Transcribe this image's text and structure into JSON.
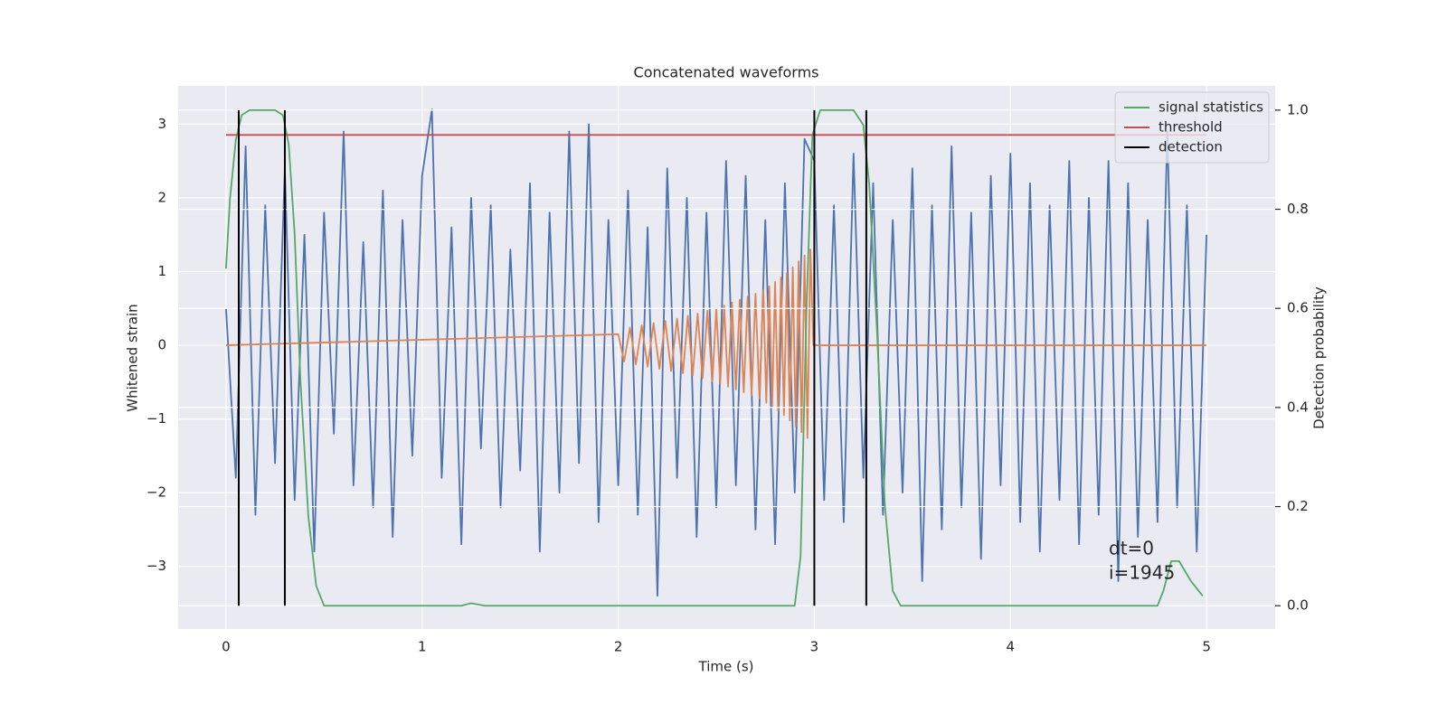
{
  "chart_data": {
    "type": "line",
    "title": "Concatenated waveforms",
    "x_label": "Time (s)",
    "y_label": "Whitened strain",
    "y2_label": "Detection probability",
    "xlim": [
      -0.244,
      5.35
    ],
    "ylim": [
      -3.85,
      3.52
    ],
    "y2lim": [
      -0.047,
      1.049
    ],
    "xticks": [
      0,
      1,
      2,
      3,
      4,
      5
    ],
    "yticks": [
      {
        "value": -3,
        "label": "−3"
      },
      {
        "value": -2,
        "label": "−2"
      },
      {
        "value": -1,
        "label": "−1"
      },
      0,
      1,
      2,
      3
    ],
    "y2ticks": [
      {
        "value": 0,
        "label": "0.0"
      },
      0.2,
      0.4,
      0.6,
      0.8,
      {
        "value": 1,
        "label": "1.0"
      }
    ],
    "grid": true,
    "legend": "upper right",
    "background": "#eaeaf2",
    "annotations": [
      "dt=0",
      "i=1945"
    ],
    "series": [
      {
        "color": "#4c72b0",
        "x": [
          0,
          0.05,
          0.1,
          0.15,
          0.2,
          0.25,
          0.3,
          0.35,
          0.4,
          0.45,
          0.5,
          0.55,
          0.6,
          0.65,
          0.7,
          0.75,
          0.8,
          0.85,
          0.9,
          0.95,
          1,
          1.05,
          1.1,
          1.15,
          1.2,
          1.25,
          1.3,
          1.35,
          1.4,
          1.45,
          1.5,
          1.55,
          1.6,
          1.65,
          1.7,
          1.75,
          1.8,
          1.85,
          1.9,
          1.95,
          2,
          2.05,
          2.1,
          2.15,
          2.2,
          2.25,
          2.3,
          2.35,
          2.4,
          2.45,
          2.5,
          2.55,
          2.6,
          2.65,
          2.7,
          2.75,
          2.8,
          2.85,
          2.9,
          2.95,
          3,
          3.05,
          3.1,
          3.15,
          3.2,
          3.25,
          3.3,
          3.35,
          3.4,
          3.45,
          3.5,
          3.55,
          3.6,
          3.65,
          3.7,
          3.75,
          3.8,
          3.85,
          3.9,
          3.95,
          4,
          4.05,
          4.1,
          4.15,
          4.2,
          4.25,
          4.3,
          4.35,
          4.4,
          4.45,
          4.5,
          4.55,
          4.6,
          4.65,
          4.7,
          4.75,
          4.8,
          4.85,
          4.9,
          4.95,
          5
        ],
        "values": [
          0.5,
          -1.8,
          2.7,
          -2.3,
          1.9,
          -1.6,
          2.4,
          -2.1,
          1.5,
          -2.8,
          1.8,
          -1.2,
          2.9,
          -1.9,
          1.4,
          -2.2,
          2.1,
          -2.6,
          1.7,
          -1.5,
          2.3,
          3.2,
          -1.8,
          1.6,
          -2.7,
          2.0,
          -1.4,
          1.9,
          -2.2,
          1.3,
          -1.7,
          2.2,
          -2.8,
          1.8,
          -2.0,
          2.9,
          -1.6,
          3.0,
          -2.4,
          1.7,
          -1.9,
          2.1,
          -2.3,
          1.6,
          -3.4,
          2.4,
          -1.8,
          2.0,
          -2.6,
          1.8,
          -2.2,
          2.5,
          -1.9,
          2.3,
          -2.5,
          1.7,
          -2.7,
          2.2,
          -2.0,
          2.8,
          2.5,
          -2.1,
          1.9,
          -2.4,
          2.6,
          -1.8,
          2.2,
          -2.3,
          1.7,
          -2.0,
          2.4,
          -3.2,
          1.9,
          -2.5,
          2.7,
          -2.2,
          1.8,
          -2.9,
          2.3,
          -1.9,
          2.6,
          -2.4,
          2.2,
          -2.8,
          1.9,
          -2.1,
          2.5,
          -2.7,
          2.0,
          -2.3,
          2.5,
          -3.2,
          2.2,
          -2.6,
          1.7,
          -2.4,
          2.9,
          -2.2,
          1.9,
          -2.8,
          1.5
        ]
      },
      {
        "color": "#dd8452",
        "x": [
          0,
          2.0,
          2.03,
          2.06,
          2.09,
          2.12,
          2.15,
          2.18,
          2.21,
          2.24,
          2.27,
          2.3,
          2.33,
          2.355,
          2.38,
          2.405,
          2.43,
          2.455,
          2.48,
          2.5,
          2.52,
          2.54,
          2.56,
          2.58,
          2.6,
          2.62,
          2.64,
          2.66,
          2.68,
          2.7,
          2.72,
          2.74,
          2.755,
          2.77,
          2.785,
          2.8,
          2.815,
          2.83,
          2.845,
          2.86,
          2.875,
          2.89,
          2.905,
          2.92,
          2.935,
          2.95,
          2.965,
          2.98,
          2.995,
          5
        ],
        "values": [
          0,
          0.15,
          -0.22,
          0.24,
          -0.26,
          0.27,
          -0.29,
          0.3,
          -0.32,
          0.33,
          -0.35,
          0.36,
          -0.38,
          0.4,
          -0.41,
          0.43,
          -0.45,
          0.47,
          -0.49,
          0.5,
          -0.52,
          0.54,
          -0.56,
          0.58,
          -0.6,
          0.62,
          -0.64,
          0.66,
          -0.68,
          0.7,
          -0.72,
          0.75,
          -0.78,
          0.8,
          -0.83,
          0.86,
          -0.89,
          0.92,
          -0.95,
          0.98,
          -1.02,
          1.06,
          -1.1,
          1.14,
          -1.18,
          1.22,
          -1.26,
          1.3,
          0,
          0
        ]
      },
      {
        "name": "signal statistics",
        "color": "#55a868",
        "axis": "y2",
        "x": [
          0,
          0.02,
          0.05,
          0.08,
          0.12,
          0.25,
          0.29,
          0.32,
          0.35,
          0.38,
          0.42,
          0.46,
          0.5,
          1.2,
          1.25,
          1.32,
          2.9,
          2.93,
          2.96,
          2.99,
          3.03,
          3.2,
          3.25,
          3.28,
          3.32,
          3.36,
          3.4,
          3.44,
          4.75,
          4.78,
          4.82,
          4.86,
          4.92,
          4.98
        ],
        "values": [
          0.68,
          0.82,
          0.94,
          0.99,
          1.0,
          1.0,
          0.99,
          0.93,
          0.75,
          0.45,
          0.18,
          0.04,
          0.0,
          0.0,
          0.005,
          0.0,
          0.0,
          0.1,
          0.6,
          0.95,
          1.0,
          1.0,
          0.97,
          0.85,
          0.55,
          0.2,
          0.03,
          0.0,
          0.0,
          0.03,
          0.09,
          0.09,
          0.05,
          0.02
        ]
      },
      {
        "name": "threshold",
        "color": "#c44e52",
        "axis": "y2",
        "x": [
          0,
          5
        ],
        "values": [
          0.95,
          0.95
        ]
      },
      {
        "name": "detection",
        "color": "#000000",
        "axis": "y2",
        "type": "vline",
        "x": [
          0.065,
          0.3,
          3.0,
          3.265
        ],
        "span": [
          0,
          1
        ]
      }
    ]
  }
}
